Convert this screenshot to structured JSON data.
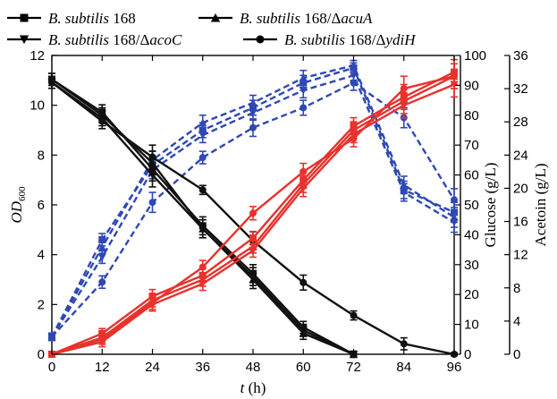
{
  "chart_data": {
    "type": "line",
    "x": [
      0,
      12,
      24,
      36,
      48,
      60,
      72,
      84,
      96
    ],
    "xticks": [
      "0",
      "12",
      "24",
      "36",
      "48",
      "60",
      "72",
      "84",
      "96"
    ],
    "xlabel": {
      "var": "t",
      "unit": " (h)"
    },
    "xlim": [
      0,
      96
    ],
    "y_axes": [
      {
        "id": "od",
        "label_main": "OD",
        "label_sub": "600",
        "lim": [
          0,
          12
        ],
        "ticks": [
          "0",
          "2",
          "4",
          "6",
          "8",
          "10",
          "12"
        ]
      },
      {
        "id": "glucose",
        "label": "Glucose (g/L)",
        "lim": [
          0,
          100
        ],
        "ticks": [
          "0",
          "10",
          "20",
          "30",
          "40",
          "50",
          "60",
          "70",
          "80",
          "90",
          "100"
        ]
      },
      {
        "id": "acetoin",
        "label": "Acetoin (g/L)",
        "lim": [
          0,
          36
        ],
        "ticks": [
          "0",
          "4",
          "8",
          "12",
          "16",
          "20",
          "24",
          "28",
          "32",
          "36"
        ]
      }
    ],
    "legend": {
      "placement": "top",
      "entries": [
        {
          "marker": "square",
          "italic": "B. subtilis",
          "plain": " 168"
        },
        {
          "marker": "triangle-up",
          "italic": "B. subtilis",
          "plain": " 168/Δ",
          "gene": "acuA"
        },
        {
          "marker": "triangle-down",
          "italic": "B. subtilis",
          "plain": " 168/Δ",
          "gene": "acoC"
        },
        {
          "marker": "circle",
          "italic": "B. subtilis",
          "plain": " 168/Δ",
          "gene": "ydiH"
        }
      ]
    },
    "colors": {
      "od": "#2f48b5",
      "glucose": "#111111",
      "acetoin": "#e8322d"
    },
    "series": [
      {
        "strain": 0,
        "measure": "od",
        "axis": "od",
        "marker": "square",
        "dashed": true,
        "values": [
          0.7,
          4.6,
          7.6,
          9.0,
          9.9,
          10.9,
          11.5,
          6.6,
          5.7
        ],
        "err": [
          0.15,
          0.25,
          0.35,
          0.3,
          0.3,
          0.3,
          0.2,
          0.35,
          0.4
        ]
      },
      {
        "strain": 1,
        "measure": "od",
        "axis": "od",
        "marker": "triangle-up",
        "dashed": true,
        "values": [
          0.7,
          4.3,
          7.8,
          9.3,
          10.1,
          11.1,
          11.6,
          6.8,
          5.5
        ],
        "err": [
          0.15,
          0.25,
          0.35,
          0.3,
          0.3,
          0.3,
          0.2,
          0.35,
          0.4
        ]
      },
      {
        "strain": 2,
        "measure": "od",
        "axis": "od",
        "marker": "triangle-down",
        "dashed": true,
        "values": [
          0.7,
          3.9,
          7.4,
          8.8,
          9.7,
          10.6,
          11.2,
          6.5,
          5.3
        ],
        "err": [
          0.15,
          0.25,
          0.35,
          0.3,
          0.3,
          0.3,
          0.2,
          0.35,
          0.4
        ]
      },
      {
        "strain": 3,
        "measure": "od",
        "axis": "od",
        "marker": "circle",
        "dashed": true,
        "values": [
          0.7,
          2.9,
          6.1,
          7.9,
          9.1,
          9.9,
          10.9,
          9.5,
          6.2
        ],
        "err": [
          0.15,
          0.25,
          0.4,
          0.25,
          0.35,
          0.3,
          0.3,
          0.4,
          0.45
        ]
      },
      {
        "strain": 0,
        "measure": "glucose",
        "axis": "glucose",
        "marker": "square",
        "dashed": false,
        "values": [
          92,
          81,
          62,
          43,
          27,
          9,
          0,
          null,
          null
        ],
        "err": [
          2,
          2.5,
          4,
          3,
          3,
          2,
          1,
          0,
          0
        ]
      },
      {
        "strain": 1,
        "measure": "glucose",
        "axis": "glucose",
        "marker": "triangle-up",
        "dashed": false,
        "values": [
          92,
          80,
          64,
          42,
          25,
          7,
          0,
          null,
          null
        ],
        "err": [
          2,
          2.5,
          4,
          3,
          3,
          2,
          1,
          0,
          0
        ]
      },
      {
        "strain": 2,
        "measure": "glucose",
        "axis": "glucose",
        "marker": "triangle-down",
        "dashed": false,
        "values": [
          91,
          79,
          60,
          42,
          26,
          8,
          0,
          null,
          null
        ],
        "err": [
          2,
          2.5,
          4,
          3,
          3,
          2,
          1,
          0,
          0
        ]
      },
      {
        "strain": 3,
        "measure": "glucose",
        "axis": "glucose",
        "marker": "circle",
        "dashed": false,
        "values": [
          91,
          78,
          66,
          55,
          38,
          24,
          13,
          3.5,
          0
        ],
        "err": [
          2,
          2.5,
          4,
          1.5,
          3,
          2.5,
          1.5,
          2,
          0.5
        ]
      },
      {
        "strain": 0,
        "measure": "acetoin",
        "axis": "acetoin",
        "marker": "square",
        "dashed": false,
        "values": [
          0,
          2.5,
          7.0,
          9.5,
          14.0,
          21.0,
          27.5,
          31.0,
          34.0
        ],
        "err": [
          0.2,
          0.6,
          0.8,
          0.8,
          0.8,
          1.0,
          1.0,
          1.5,
          1.5
        ]
      },
      {
        "strain": 1,
        "measure": "acetoin",
        "axis": "acetoin",
        "marker": "triangle-up",
        "dashed": false,
        "values": [
          0,
          2.0,
          6.5,
          9.0,
          13.0,
          20.5,
          27.0,
          30.5,
          33.5
        ],
        "err": [
          0.2,
          0.6,
          0.8,
          0.8,
          0.8,
          1.0,
          1.0,
          1.5,
          1.5
        ]
      },
      {
        "strain": 2,
        "measure": "acetoin",
        "axis": "acetoin",
        "marker": "triangle-down",
        "dashed": false,
        "values": [
          0,
          1.5,
          6.0,
          8.5,
          12.5,
          20.0,
          26.5,
          30.0,
          32.5
        ],
        "err": [
          0.2,
          0.6,
          0.8,
          0.8,
          0.8,
          1.0,
          1.0,
          1.5,
          1.5
        ]
      },
      {
        "strain": 3,
        "measure": "acetoin",
        "axis": "acetoin",
        "marker": "circle",
        "dashed": false,
        "values": [
          0,
          1.8,
          6.2,
          10.5,
          17.0,
          22.0,
          26.0,
          32.0,
          33.5
        ],
        "err": [
          0.2,
          0.6,
          0.8,
          0.8,
          0.8,
          1.0,
          1.0,
          1.5,
          1.5
        ]
      }
    ]
  }
}
